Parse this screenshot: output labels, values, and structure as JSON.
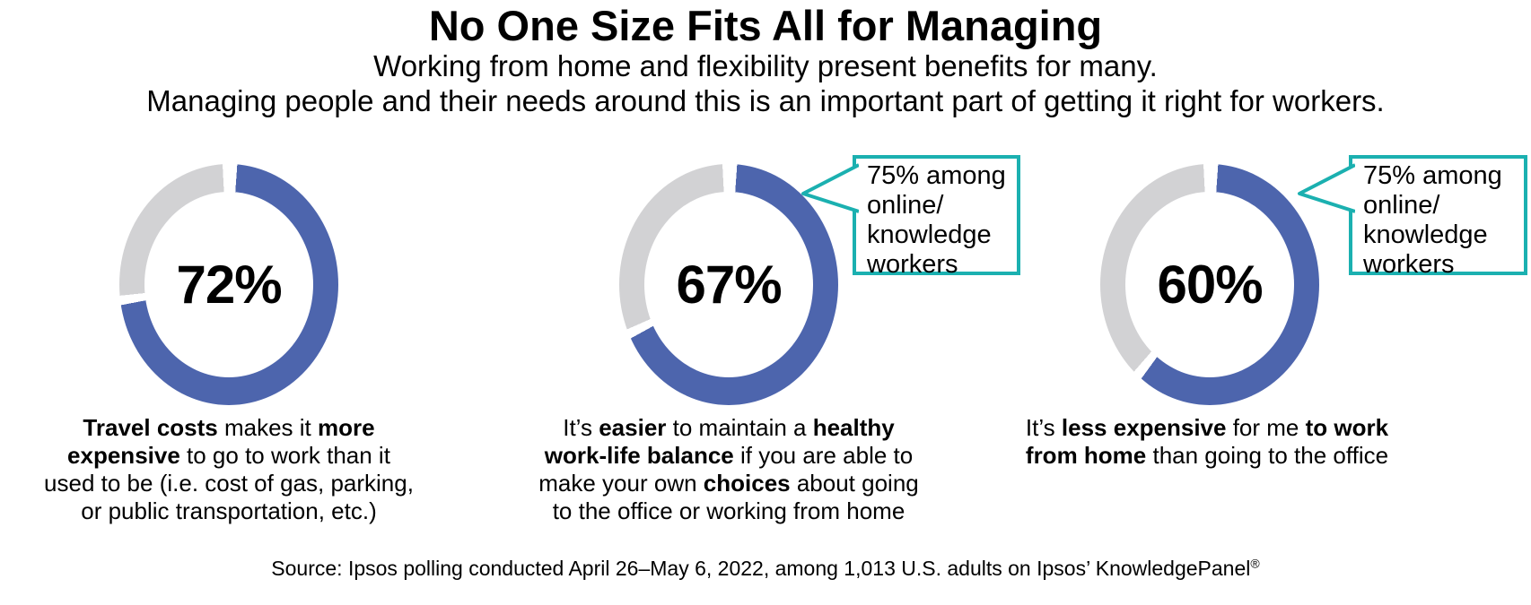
{
  "header": {
    "title": "No One Size Fits All for Managing",
    "subtitle_line1": "Working from home and flexibility present benefits for many.",
    "subtitle_line2": "Managing people and their needs around this is an important part of getting it right for workers."
  },
  "chart_data": {
    "type": "pie",
    "subtype": "donut-trio",
    "title": "No One Size Fits All for Managing",
    "legend_position": "none",
    "colors": {
      "fill": "#4d65ad",
      "track": "#d2d2d4",
      "callout_border": "#1bb0b0",
      "text": "#000000"
    },
    "charts": [
      {
        "value": 72,
        "remainder": 28,
        "pct_label": "72%",
        "label": "Travel costs makes it more expensive to go to work than it used to be (i.e. cost of gas, parking, or public transportation, etc.)",
        "caption_lines": [
          [
            {
              "t": "Travel costs",
              "b": true
            },
            " makes it ",
            {
              "t": "more",
              "b": true
            }
          ],
          [
            {
              "t": "expensive",
              "b": true
            },
            " to go to work than it"
          ],
          [
            "used to be (i.e. cost of gas, parking,"
          ],
          [
            "or public transportation, etc.)"
          ]
        ]
      },
      {
        "value": 67,
        "remainder": 33,
        "pct_label": "67%",
        "label": "It’s easier to maintain a healthy work-life balance if you are able to make your own choices about going to the office or working from home",
        "callout": "75% among online/knowledge workers",
        "callout_lines": [
          "75% among",
          "online/",
          "knowledge",
          "workers"
        ],
        "caption_lines": [
          [
            "It’s ",
            {
              "t": "easier",
              "b": true
            },
            " to maintain a ",
            {
              "t": "healthy",
              "b": true
            }
          ],
          [
            {
              "t": "work-life balance",
              "b": true
            },
            " if you are able to"
          ],
          [
            "make your own ",
            {
              "t": "choices",
              "b": true
            },
            " about going"
          ],
          [
            "to the office or working from home"
          ]
        ]
      },
      {
        "value": 60,
        "remainder": 40,
        "pct_label": "60%",
        "label": "It’s less expensive for me to work from home than going to the office",
        "callout": "75% among online/knowledge workers",
        "callout_lines": [
          "75% among",
          "online/",
          "knowledge",
          "workers"
        ],
        "caption_lines": [
          [
            "It’s ",
            {
              "t": "less expensive",
              "b": true
            },
            " for me ",
            {
              "t": "to work",
              "b": true
            }
          ],
          [
            {
              "t": "from home",
              "b": true
            },
            " than going to the office"
          ]
        ]
      }
    ]
  },
  "footer": {
    "source_text": "Source: Ipsos polling conducted April 26–May 6, 2022, among 1,013 U.S. adults on Ipsos’ KnowledgePanel",
    "registered_mark": "®"
  }
}
